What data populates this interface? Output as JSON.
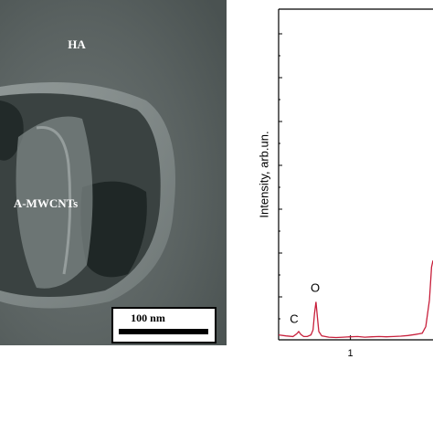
{
  "image": {
    "labels": [
      "HA",
      "A-MWCNTs"
    ],
    "scale_bar": "100 nm"
  },
  "chart_data": {
    "type": "line",
    "ylabel": "Intensity, arb.un.",
    "annotations": [
      "C",
      "O"
    ],
    "x": [
      0,
      0.1,
      0.2,
      0.25,
      0.28,
      0.31,
      0.35,
      0.4,
      0.45,
      0.48,
      0.5,
      0.52,
      0.54,
      0.56,
      0.6,
      0.7,
      0.8,
      0.9,
      1.0,
      1.1,
      1.2,
      1.3,
      1.4,
      1.5,
      1.6,
      1.7,
      1.8,
      1.9,
      1.95,
      2.0,
      2.05,
      2.1,
      2.13,
      2.15
    ],
    "series": [
      {
        "color": "#c8203c",
        "values": [
          1.5,
          1.2,
          1.0,
          1.8,
          2.5,
          1.6,
          1.0,
          1.0,
          1.5,
          3,
          8,
          11.5,
          7,
          2.5,
          1.2,
          0.8,
          0.7,
          0.8,
          0.9,
          1.0,
          0.8,
          0.9,
          1.0,
          0.9,
          1.0,
          1.1,
          1.3,
          1.6,
          1.8,
          2,
          4,
          12,
          22,
          24
        ]
      }
    ],
    "xlim": [
      0,
      2.15
    ],
    "ylim": [
      0,
      100
    ],
    "xticks": [
      1
    ]
  }
}
